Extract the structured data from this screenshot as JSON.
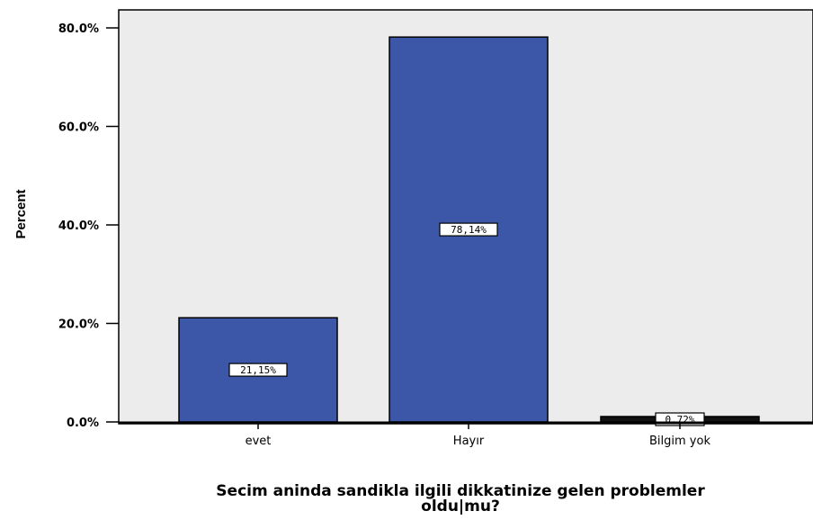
{
  "chart_data": {
    "type": "bar",
    "categories": [
      "evet",
      "Hayır",
      "Bilgim yok"
    ],
    "values": [
      21.15,
      78.14,
      0.72
    ],
    "data_labels": [
      "21,15%",
      "78,14%",
      "0,72%"
    ],
    "ylabel": "Percent",
    "xlabel_line1": "Secim aninda sandikla ilgili dikkatinize gelen problemler",
    "xlabel_line2": "oldu|mu?",
    "yticks": [
      "0.0%",
      "20.0%",
      "40.0%",
      "60.0%",
      "80.0%"
    ],
    "ytick_values": [
      0,
      20,
      40,
      60,
      80
    ],
    "ylim": [
      0,
      80
    ],
    "colors": {
      "bar": "#3c56a8",
      "last_bar": "#111111",
      "plot_bg": "#ececec"
    }
  }
}
